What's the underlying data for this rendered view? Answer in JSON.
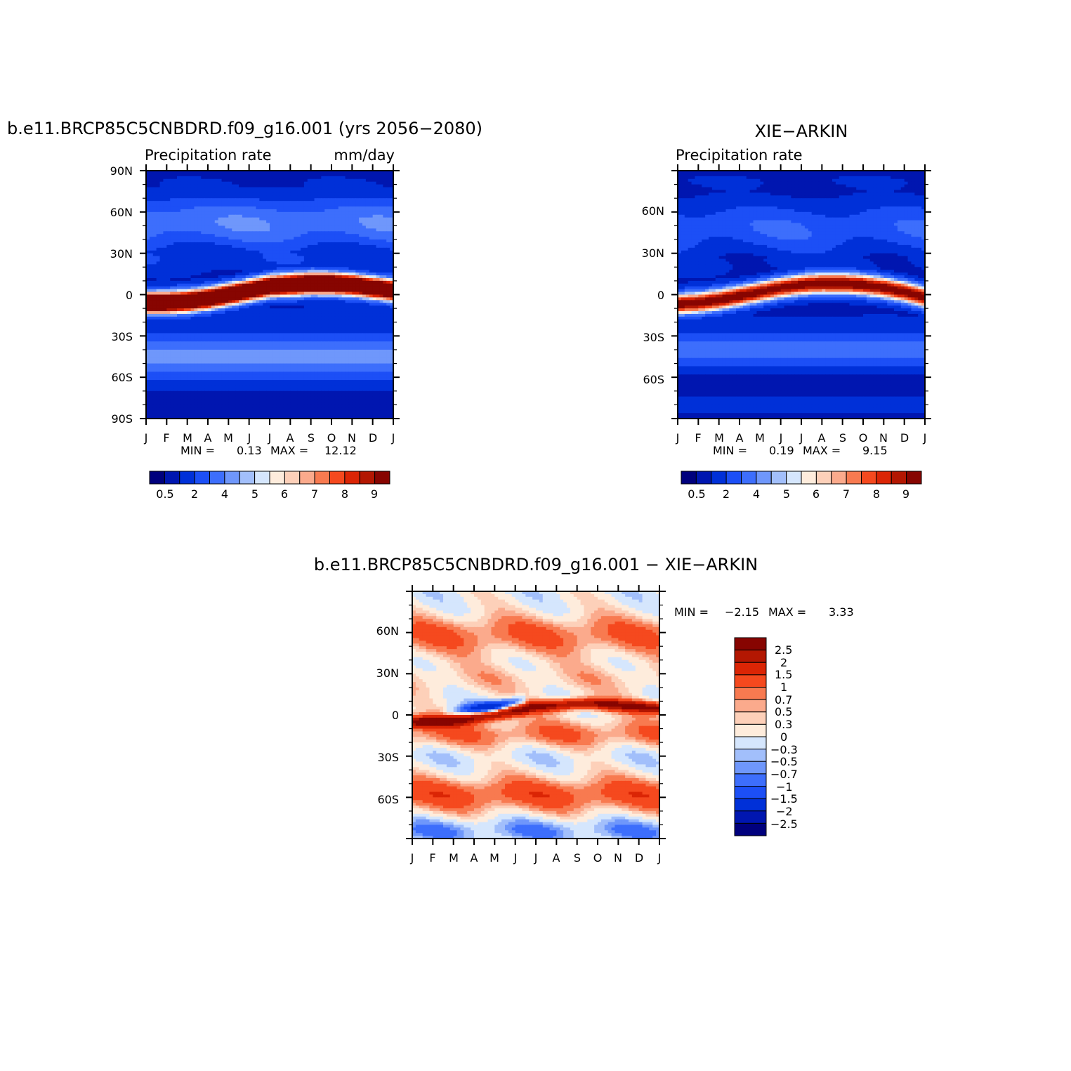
{
  "palettes": {
    "abs": [
      "#00007d",
      "#0016b0",
      "#0030d8",
      "#1c4ff6",
      "#3d6efc",
      "#6f97fb",
      "#a2bffb",
      "#d5e6fd",
      "#feecdc",
      "#fdd0b9",
      "#fbaa8c",
      "#f87a50",
      "#f5491e",
      "#db2505",
      "#b31702",
      "#870501"
    ],
    "diff": [
      "#870501",
      "#b31702",
      "#db2505",
      "#f5491e",
      "#f87a50",
      "#fbaa8c",
      "#fdd0b9",
      "#feecdc",
      "#d5e6fd",
      "#a2bffb",
      "#6f97fb",
      "#3d6efc",
      "#1c4ff6",
      "#0030d8",
      "#0016b0",
      "#00007d"
    ]
  },
  "chart_data": [
    {
      "type": "heatmap",
      "title": "b.e11.BRCP85C5CNBDRD.f09_g16.001 (yrs 2056-2080)",
      "left_label": "Precipitation rate",
      "right_label": "mm/day",
      "xticks": [
        "J",
        "F",
        "M",
        "A",
        "M",
        "J",
        "J",
        "A",
        "S",
        "O",
        "N",
        "D",
        "J"
      ],
      "yticks": [
        "90N",
        "60N",
        "30N",
        "0",
        "30S",
        "60S",
        "90S"
      ],
      "ylim": [
        -90,
        90
      ],
      "min_text": "MIN =",
      "min_value": "0.13",
      "max_text": "MAX =",
      "max_value": "12.12",
      "colorbar_labels": [
        "0.5",
        "2",
        "4",
        "5",
        "6",
        "7",
        "8",
        "9"
      ],
      "itcz_lat": [
        -6,
        -6,
        -5,
        -3,
        0,
        3,
        6,
        7,
        8,
        8,
        7,
        5,
        3
      ],
      "itcz_peak_mm_day": 12.12,
      "itcz_width_deg": 6,
      "bands": [
        {
          "lat": 80,
          "value": 0.5,
          "width": 12
        },
        {
          "lat": 52,
          "value": 3.3,
          "width": 14
        },
        {
          "lat": 26,
          "value": 1.2,
          "width": 9
        },
        {
          "lat": -22,
          "value": 0.9,
          "width": 12
        },
        {
          "lat": -45,
          "value": 3.8,
          "width": 12
        },
        {
          "lat": -82,
          "value": 0.2,
          "width": 9
        }
      ]
    },
    {
      "type": "heatmap",
      "title": "XIE-ARKIN",
      "left_label": "Precipitation rate",
      "right_label": "",
      "xticks": [
        "J",
        "F",
        "M",
        "A",
        "M",
        "J",
        "J",
        "A",
        "S",
        "O",
        "N",
        "D",
        "J"
      ],
      "yticks": [
        "60N",
        "30N",
        "0",
        "30S",
        "60S"
      ],
      "ylim": [
        -90,
        90
      ],
      "min_text": "MIN =",
      "min_value": "0.19",
      "max_text": "MAX =",
      "max_value": "9.15",
      "colorbar_labels": [
        "0.5",
        "2",
        "4",
        "5",
        "6",
        "7",
        "8",
        "9"
      ],
      "itcz_lat": [
        -7,
        -6,
        -4,
        -1,
        2,
        5,
        7,
        8,
        8,
        7,
        5,
        2,
        -2
      ],
      "itcz_peak_mm_day": 9.15,
      "itcz_width_deg": 6,
      "bands": [
        {
          "lat": 82,
          "value": 0.5,
          "width": 10
        },
        {
          "lat": 48,
          "value": 2.3,
          "width": 14
        },
        {
          "lat": 24,
          "value": 0.8,
          "width": 9
        },
        {
          "lat": -22,
          "value": 0.6,
          "width": 11
        },
        {
          "lat": -40,
          "value": 3.0,
          "width": 10
        },
        {
          "lat": -80,
          "value": 0.6,
          "width": 10
        }
      ]
    },
    {
      "type": "heatmap",
      "title": "b.e11.BRCP85C5CNBDRD.f09_g16.001 - XIE-ARKIN",
      "xticks": [
        "J",
        "F",
        "M",
        "A",
        "M",
        "J",
        "J",
        "A",
        "S",
        "O",
        "N",
        "D",
        "J"
      ],
      "yticks": [
        "60N",
        "30N",
        "0",
        "30S",
        "60S"
      ],
      "ylim": [
        -90,
        90
      ],
      "min_text": "MIN =",
      "min_value": "-2.15",
      "max_text": "MAX =",
      "max_value": "3.33",
      "colorbar_labels": [
        "2.5",
        "2",
        "1.5",
        "1",
        "0.7",
        "0.5",
        "0.3",
        "0",
        "-0.3",
        "-0.5",
        "-0.7",
        "-1",
        "-1.5",
        "-2",
        "-2.5"
      ],
      "features": [
        {
          "lat": 58,
          "value": 1.0,
          "width": 10
        },
        {
          "lat": 26,
          "value": 0.4,
          "width": 8
        },
        {
          "lat": -14,
          "value": 0.9,
          "width": 8
        },
        {
          "lat": -28,
          "value": -0.2,
          "width": 6
        },
        {
          "lat": -58,
          "value": 1.2,
          "width": 9
        },
        {
          "lat": -84,
          "value": -0.6,
          "width": 6
        }
      ],
      "wave_lat": [
        -5,
        -5,
        -4,
        -2,
        0,
        3,
        6,
        7,
        8,
        8,
        7,
        6,
        5
      ],
      "wave_pos": 2.6,
      "wave_neg": -2.15
    }
  ]
}
